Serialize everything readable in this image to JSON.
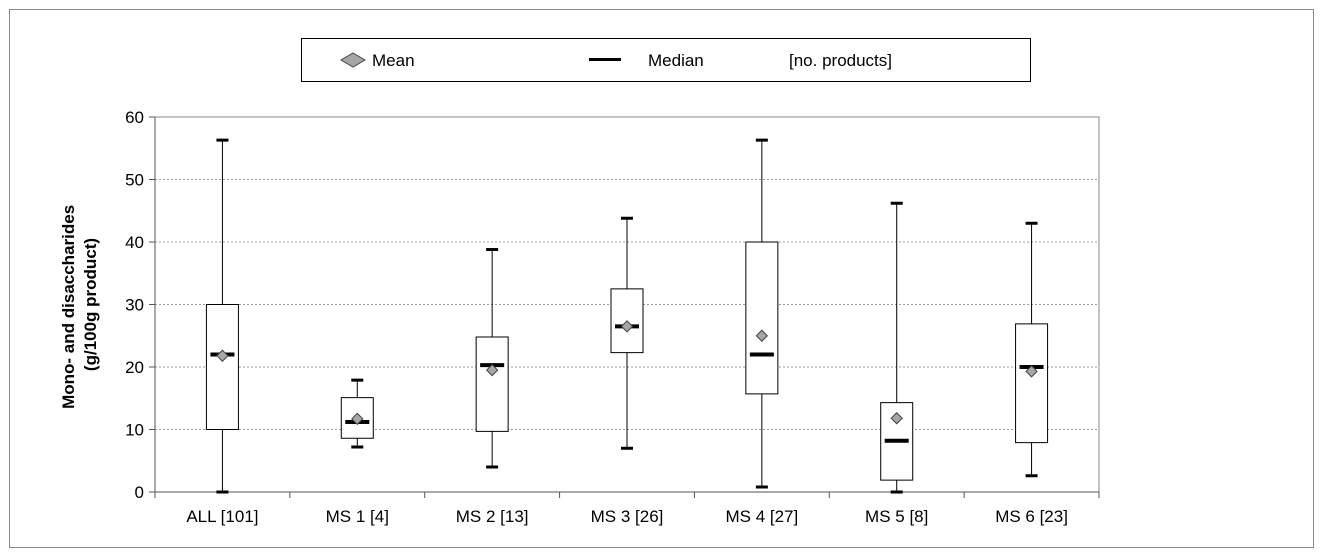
{
  "chart_data": {
    "type": "boxplot",
    "ylabel_line1": "Mono- and disaccharides",
    "ylabel_line2": "(g/100g product)",
    "ylim": [
      0,
      60
    ],
    "yticks": [
      0,
      10,
      20,
      30,
      40,
      50,
      60
    ],
    "yticklabels": [
      "0",
      "10",
      "20",
      "30",
      "40",
      "50",
      "60"
    ],
    "grid": "horizontal-dashed",
    "legend": {
      "placement": "top-center",
      "mean_label": "Mean",
      "median_label": "Median",
      "count_label": "[no. products]"
    },
    "categories": [
      "ALL [101]",
      "MS 1 [4]",
      "MS 2 [13]",
      "MS 3 [26]",
      "MS 4 [27]",
      "MS 5 [8]",
      "MS 6 [23]"
    ],
    "boxes": [
      {
        "min": 0,
        "q1": 10,
        "median": 22,
        "q3": 30,
        "max": 56.3,
        "mean": 21.8
      },
      {
        "min": 7.2,
        "q1": 8.6,
        "median": 11.2,
        "q3": 15.1,
        "max": 17.9,
        "mean": 11.7
      },
      {
        "min": 4,
        "q1": 9.7,
        "median": 20.3,
        "q3": 24.8,
        "max": 38.8,
        "mean": 19.5
      },
      {
        "min": 7,
        "q1": 22.3,
        "median": 26.5,
        "q3": 32.5,
        "max": 43.8,
        "mean": 26.5
      },
      {
        "min": 0.8,
        "q1": 15.7,
        "median": 22,
        "q3": 40,
        "max": 56.3,
        "mean": 25
      },
      {
        "min": 0,
        "q1": 1.9,
        "median": 8.2,
        "q3": 14.3,
        "max": 46.2,
        "mean": 11.8
      },
      {
        "min": 2.6,
        "q1": 7.9,
        "median": 20,
        "q3": 26.9,
        "max": 43,
        "mean": 19.3
      }
    ],
    "colors": {
      "mean_marker": "#a6a6a6",
      "grid": "#9a9a9a"
    }
  }
}
